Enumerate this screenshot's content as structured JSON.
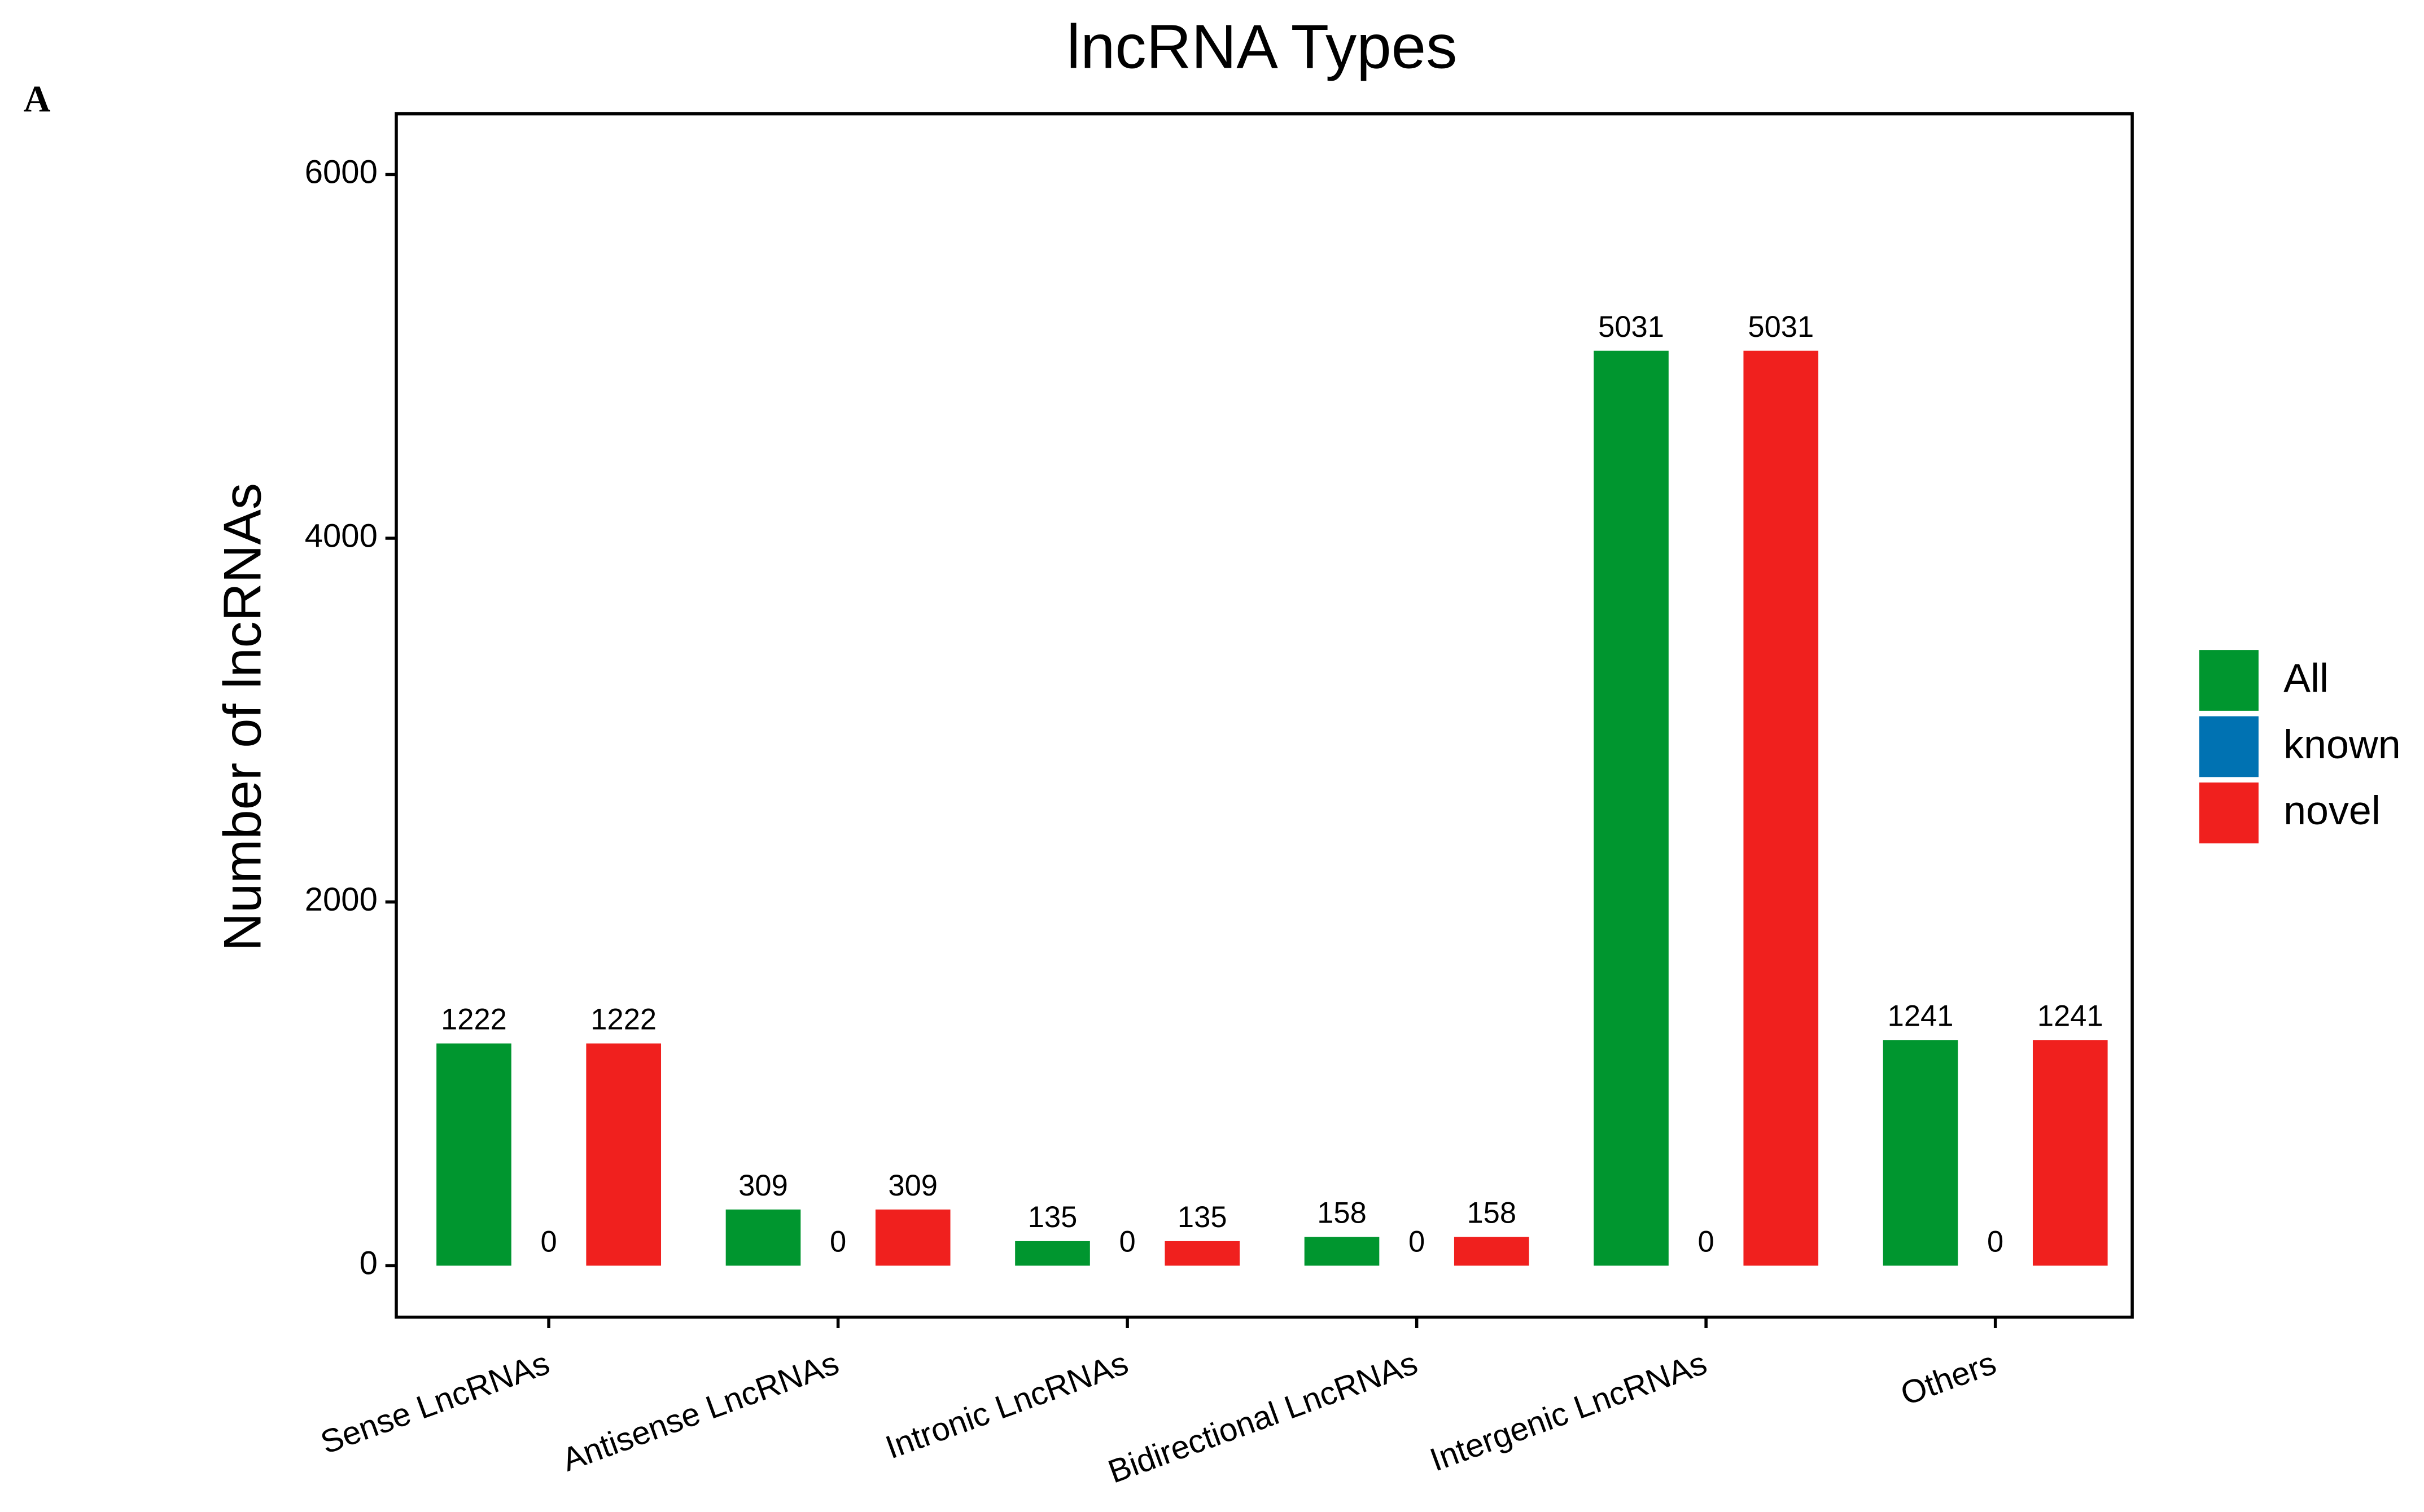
{
  "panel_label": "A",
  "chart_data": {
    "type": "bar",
    "title": "lncRNA Types",
    "y_label": "Number of lncRNAs",
    "categories": [
      "Sense LncRNAs",
      "Antisense LncRNAs",
      "Intronic LncRNAs",
      "Bidirectional LncRNAs",
      "Intergenic LncRNAs",
      "Others"
    ],
    "series": [
      {
        "name": "All",
        "color": "#00962f",
        "values": [
          1222,
          309,
          135,
          158,
          5031,
          1241
        ]
      },
      {
        "name": "known",
        "color": "#0072b2",
        "values": [
          0,
          0,
          0,
          0,
          0,
          0
        ]
      },
      {
        "name": "novel",
        "color": "#f0201e",
        "values": [
          1222,
          309,
          135,
          158,
          5031,
          1241
        ]
      }
    ],
    "ylim": [
      -283,
      6334
    ],
    "yticks": [
      0,
      2000,
      4000,
      6000
    ],
    "grid": false,
    "legend": "right"
  }
}
